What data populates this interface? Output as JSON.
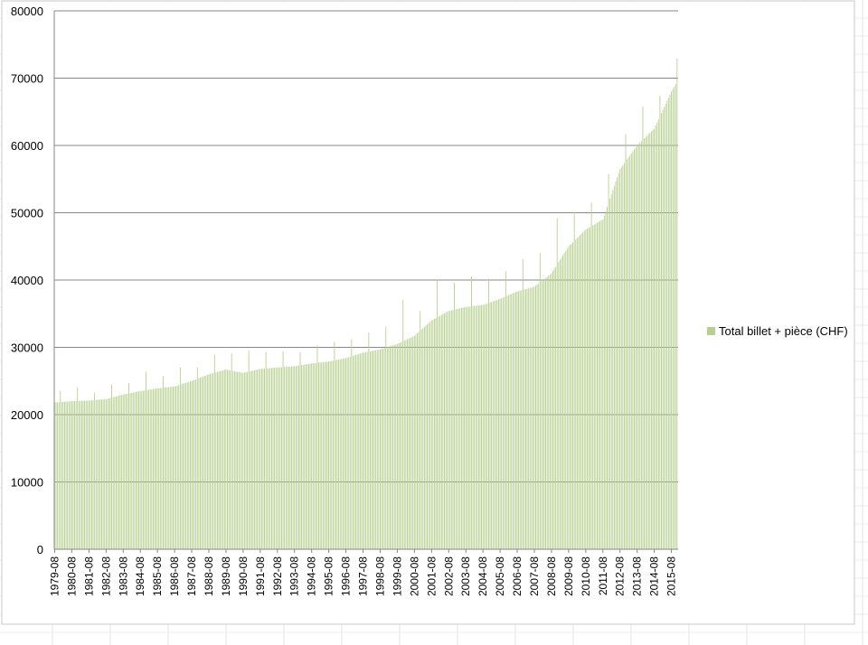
{
  "chart_data": {
    "type": "bar",
    "series": [
      {
        "name": "Total billet + pièce (CHF)",
        "anchors": [
          [
            "1979-08",
            21800
          ],
          [
            "1980-08",
            22000
          ],
          [
            "1981-08",
            22100
          ],
          [
            "1982-08",
            22300
          ],
          [
            "1983-08",
            23000
          ],
          [
            "1984-08",
            23500
          ],
          [
            "1985-08",
            23900
          ],
          [
            "1986-08",
            24200
          ],
          [
            "1987-08",
            25000
          ],
          [
            "1988-08",
            26000
          ],
          [
            "1989-08",
            26700
          ],
          [
            "1990-08",
            26200
          ],
          [
            "1991-08",
            26800
          ],
          [
            "1992-08",
            27000
          ],
          [
            "1993-08",
            27200
          ],
          [
            "1994-08",
            27600
          ],
          [
            "1995-08",
            27900
          ],
          [
            "1996-08",
            28400
          ],
          [
            "1997-08",
            29200
          ],
          [
            "1998-08",
            29700
          ],
          [
            "1999-08",
            30500
          ],
          [
            "2000-08",
            31700
          ],
          [
            "2001-08",
            34000
          ],
          [
            "2002-08",
            35400
          ],
          [
            "2003-08",
            36000
          ],
          [
            "2004-08",
            36300
          ],
          [
            "2005-08",
            37200
          ],
          [
            "2006-08",
            38300
          ],
          [
            "2007-08",
            39000
          ],
          [
            "2008-08",
            41000
          ],
          [
            "2009-08",
            45000
          ],
          [
            "2010-08",
            47500
          ],
          [
            "2011-08",
            49000
          ],
          [
            "2012-08",
            56500
          ],
          [
            "2013-08",
            60000
          ],
          [
            "2014-08",
            62500
          ],
          [
            "2015-08",
            68000
          ],
          [
            "2015-12",
            69500
          ]
        ],
        "spikes": [
          [
            "1979-12",
            23500
          ],
          [
            "1980-12",
            24000
          ],
          [
            "1981-12",
            23300
          ],
          [
            "1982-12",
            24500
          ],
          [
            "1983-12",
            24700
          ],
          [
            "1984-12",
            26400
          ],
          [
            "1985-12",
            25700
          ],
          [
            "1986-12",
            27000
          ],
          [
            "1987-12",
            27000
          ],
          [
            "1988-12",
            28900
          ],
          [
            "1989-12",
            29100
          ],
          [
            "1990-12",
            29500
          ],
          [
            "1991-12",
            29300
          ],
          [
            "1992-12",
            29400
          ],
          [
            "1993-12",
            29300
          ],
          [
            "1994-12",
            30300
          ],
          [
            "1995-12",
            30800
          ],
          [
            "1996-12",
            31200
          ],
          [
            "1997-12",
            32200
          ],
          [
            "1998-12",
            33100
          ],
          [
            "1999-12",
            37100
          ],
          [
            "2000-12",
            35400
          ],
          [
            "2001-12",
            40000
          ],
          [
            "2002-12",
            39600
          ],
          [
            "2003-12",
            40500
          ],
          [
            "2004-12",
            40200
          ],
          [
            "2005-12",
            41300
          ],
          [
            "2006-12",
            43100
          ],
          [
            "2007-12",
            44000
          ],
          [
            "2008-12",
            49200
          ],
          [
            "2009-12",
            50100
          ],
          [
            "2010-12",
            51500
          ],
          [
            "2011-12",
            55700
          ],
          [
            "2012-12",
            61700
          ],
          [
            "2013-12",
            65800
          ],
          [
            "2014-12",
            67400
          ],
          [
            "2015-12",
            72900
          ]
        ]
      }
    ],
    "x_tick_labels": [
      "1979-08",
      "1980-08",
      "1981-08",
      "1982-08",
      "1983-08",
      "1984-08",
      "1985-08",
      "1986-08",
      "1987-08",
      "1988-08",
      "1989-08",
      "1990-08",
      "1991-08",
      "1992-08",
      "1993-08",
      "1994-08",
      "1995-08",
      "1996-08",
      "1997-08",
      "1998-08",
      "1999-08",
      "2000-08",
      "2001-08",
      "2002-08",
      "2003-08",
      "2004-08",
      "2005-08",
      "2006-08",
      "2007-08",
      "2008-08",
      "2009-08",
      "2010-08",
      "2011-08",
      "2012-08",
      "2013-08",
      "2014-08",
      "2015-08"
    ],
    "y_ticks": [
      0,
      10000,
      20000,
      30000,
      40000,
      50000,
      60000,
      70000,
      80000
    ],
    "ylim": [
      0,
      80000
    ],
    "x_range": [
      "1979-08",
      "2015-12"
    ],
    "frequency": "monthly",
    "grid": true,
    "legend_position": "right",
    "bar_color": "#b5cf8f",
    "grid_color": "#878787",
    "title": "",
    "xlabel": "",
    "ylabel": ""
  }
}
